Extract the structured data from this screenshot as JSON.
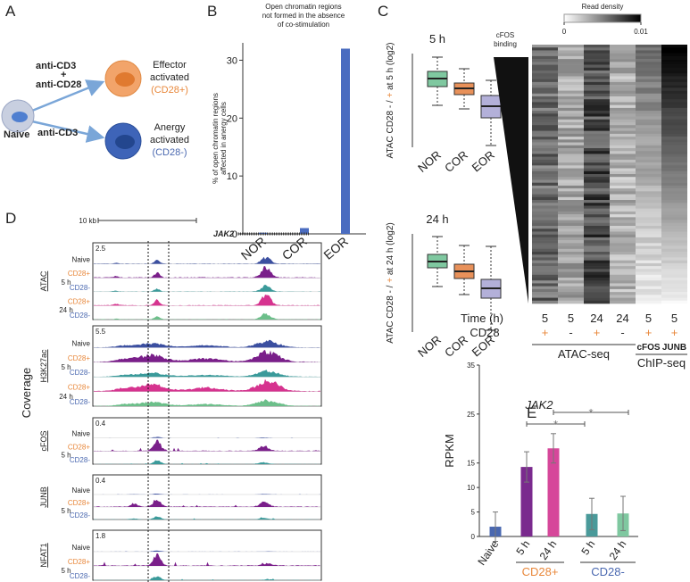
{
  "panel_a": {
    "letter": "A",
    "naive": "Naive",
    "costim": [
      "anti-CD3",
      "+",
      "anti-CD28"
    ],
    "stim": "anti-CD3",
    "effector": [
      "Effector",
      "activated",
      "(CD28+)"
    ],
    "anergy": [
      "Anergy",
      "activated",
      "(CD28-)"
    ]
  },
  "chart_data": [
    {
      "type": "bar",
      "letter": "B",
      "title": [
        "Open chromatin regions",
        "not formed in the absence",
        "of co-stimulation"
      ],
      "ylabel": [
        "% of open chromatin regions",
        "affected in anergy cells"
      ],
      "categories": [
        "NOR",
        "COR",
        "EOR"
      ],
      "values": [
        0.2,
        1,
        32
      ],
      "color": "#4a6cc0",
      "ylim": [
        0,
        33
      ],
      "yticks": [
        0,
        10,
        20,
        30
      ]
    },
    {
      "type": "box",
      "letter": "C",
      "title": "5 h",
      "ylabel": [
        "ATAC CD28 - / ",
        "+",
        " at 5 h (log2)"
      ],
      "categories": [
        "NOR",
        "COR",
        "EOR"
      ],
      "colors": [
        "#7fc8a0",
        "#e8915a",
        "#b3b0d9"
      ],
      "whislo": [
        -0.4,
        -0.6,
        -2.65
      ],
      "q1": [
        0.65,
        0.2,
        -1.1
      ],
      "med": [
        1.1,
        0.55,
        -0.45
      ],
      "q3": [
        1.5,
        0.85,
        0.15
      ],
      "whishi": [
        2.3,
        1.65,
        1.0
      ],
      "ylim": [
        -2.75,
        2.5
      ]
    },
    {
      "type": "box",
      "title": "24 h",
      "ylabel": [
        "ATAC CD28 - / ",
        "+",
        " at 24 h (log2)"
      ],
      "categories": [
        "NOR",
        "COR",
        "EOR"
      ],
      "colors": [
        "#7fc8a0",
        "#e8915a",
        "#b3b0d9"
      ],
      "whislo": [
        -0.2,
        -0.65,
        -2.65
      ],
      "q1": [
        0.85,
        0.25,
        -0.85
      ],
      "med": [
        1.2,
        0.65,
        -0.3
      ],
      "q3": [
        1.6,
        1.05,
        0.2
      ],
      "whishi": [
        2.6,
        2.1,
        2.05
      ],
      "ylim": [
        -2.75,
        2.75
      ]
    },
    {
      "type": "bar_error",
      "letter": "E",
      "title": "JAK2",
      "ylabel": "RPKM",
      "categories": [
        "Naive",
        "5 h",
        "24 h",
        "5 h",
        "24 h"
      ],
      "values": [
        2,
        14.2,
        18,
        4.6,
        4.7
      ],
      "errors": [
        3,
        3.1,
        3,
        3.2,
        3.5
      ],
      "colors": [
        "#4a68b0",
        "#7a2a8e",
        "#d6479a",
        "#4a9a9a",
        "#7fc8a0"
      ],
      "groups": [
        {
          "name": "CD28+",
          "color": "#e8873a"
        },
        {
          "name": "CD28-",
          "color": "#4a68b0"
        }
      ],
      "significance": [
        "*",
        "*"
      ],
      "ylim": [
        0,
        35
      ],
      "yticks": [
        0,
        5,
        10,
        15,
        25,
        35
      ]
    }
  ],
  "heatmap": {
    "colorbar_title": "Read density",
    "colorbar_lim": [
      0,
      0.01
    ],
    "colorbar_ticks": [
      0,
      0.01
    ],
    "order_label": [
      "cFOS",
      "binding"
    ],
    "time_label": "Time (h)",
    "cd28_label": "CD28",
    "columns": [
      {
        "time": "5",
        "cd28": "+"
      },
      {
        "time": "5",
        "cd28": "-"
      },
      {
        "time": "24",
        "cd28": "+"
      },
      {
        "time": "24",
        "cd28": "-"
      },
      {
        "time": "5",
        "cd28": "+"
      },
      {
        "time": "5",
        "cd28": "+"
      }
    ],
    "assays": [
      "ATAC-seq",
      "ChIP-seq"
    ],
    "chip_targets": [
      "cFOS",
      "JUNB"
    ]
  },
  "tracks": {
    "letter": "D",
    "scale": "10 kb",
    "gene": "JAK2",
    "ylabel": "Coverage",
    "groups": [
      {
        "name": "ATAC",
        "scale": "2.5",
        "labels": [
          "Naive",
          "CD28+",
          "CD28-",
          "CD28+",
          "CD28-"
        ],
        "times": [
          "5 h",
          "24 h"
        ]
      },
      {
        "name": "H3K27ac",
        "scale": "5.5",
        "labels": [
          "Naive",
          "CD28+",
          "CD28-",
          "CD28+",
          "CD28-"
        ],
        "times": [
          "5 h",
          "24 h"
        ]
      },
      {
        "name": "cFOS",
        "scale": "0.4",
        "labels": [
          "Naive",
          "CD28+",
          "CD28-"
        ],
        "times": [
          "5 h"
        ]
      },
      {
        "name": "JUNB",
        "scale": "0.4",
        "labels": [
          "Naive",
          "CD28+",
          "CD28-"
        ],
        "times": [
          "5 h"
        ]
      },
      {
        "name": "NFAT1",
        "scale": "1.8",
        "labels": [
          "Naive",
          "CD28+",
          "CD28-"
        ],
        "times": [
          "5 h"
        ]
      }
    ]
  }
}
